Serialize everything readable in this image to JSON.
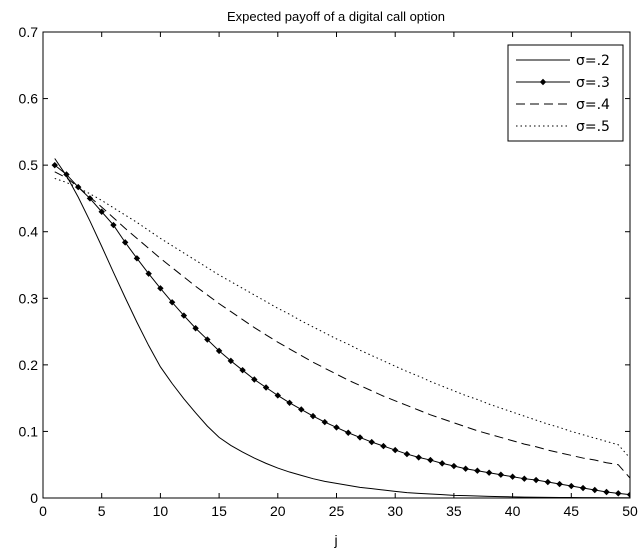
{
  "chart_data": {
    "type": "line",
    "title": "Expected payoff of a digital call option",
    "xlabel": "j",
    "ylabel": "",
    "xlim": [
      0,
      50
    ],
    "ylim": [
      0,
      0.7
    ],
    "xticks": [
      "0",
      "5",
      "10",
      "15",
      "20",
      "25",
      "30",
      "35",
      "40",
      "45",
      "50"
    ],
    "yticks": [
      "0",
      "0.1",
      "0.2",
      "0.3",
      "0.4",
      "0.5",
      "0.6",
      "0.7"
    ],
    "grid": false,
    "legend_position": "top-right",
    "x": [
      1,
      2,
      3,
      4,
      5,
      6,
      7,
      8,
      9,
      10,
      11,
      12,
      13,
      14,
      15,
      16,
      17,
      18,
      19,
      20,
      21,
      22,
      23,
      24,
      25,
      26,
      27,
      28,
      29,
      30,
      31,
      32,
      33,
      34,
      35,
      36,
      37,
      38,
      39,
      40,
      41,
      42,
      43,
      44,
      45,
      46,
      47,
      48,
      49,
      50
    ],
    "series": [
      {
        "name": "σ=.2",
        "style": "solid",
        "marker": "none",
        "values": [
          0.51,
          0.484,
          0.452,
          0.416,
          0.378,
          0.339,
          0.301,
          0.264,
          0.229,
          0.197,
          0.172,
          0.149,
          0.128,
          0.108,
          0.091,
          0.079,
          0.069,
          0.06,
          0.052,
          0.045,
          0.039,
          0.034,
          0.029,
          0.025,
          0.022,
          0.019,
          0.016,
          0.014,
          0.012,
          0.01,
          0.008,
          0.007,
          0.006,
          0.005,
          0.004,
          0.0035,
          0.003,
          0.0025,
          0.002,
          0.0017,
          0.0014,
          0.0012,
          0.001,
          0.0008,
          0.0007,
          0.0006,
          0.0005,
          0.0004,
          0.0003,
          0.0003
        ]
      },
      {
        "name": "σ=.3",
        "style": "solid",
        "marker": "diamond",
        "values": [
          0.5,
          0.486,
          0.467,
          0.45,
          0.43,
          0.41,
          0.384,
          0.36,
          0.337,
          0.315,
          0.294,
          0.274,
          0.255,
          0.238,
          0.221,
          0.206,
          0.192,
          0.178,
          0.166,
          0.154,
          0.143,
          0.133,
          0.123,
          0.114,
          0.106,
          0.098,
          0.091,
          0.084,
          0.078,
          0.072,
          0.066,
          0.061,
          0.057,
          0.052,
          0.048,
          0.044,
          0.041,
          0.038,
          0.035,
          0.032,
          0.029,
          0.027,
          0.024,
          0.021,
          0.018,
          0.015,
          0.012,
          0.009,
          0.007,
          0.005
        ]
      },
      {
        "name": "σ=.4",
        "style": "dashed",
        "marker": "none",
        "values": [
          0.49,
          0.481,
          0.467,
          0.452,
          0.437,
          0.421,
          0.405,
          0.39,
          0.375,
          0.36,
          0.346,
          0.332,
          0.318,
          0.305,
          0.292,
          0.28,
          0.268,
          0.256,
          0.245,
          0.234,
          0.224,
          0.214,
          0.204,
          0.195,
          0.186,
          0.177,
          0.169,
          0.161,
          0.153,
          0.146,
          0.139,
          0.132,
          0.125,
          0.119,
          0.113,
          0.107,
          0.101,
          0.096,
          0.091,
          0.086,
          0.081,
          0.077,
          0.072,
          0.068,
          0.064,
          0.06,
          0.057,
          0.053,
          0.05,
          0.03
        ]
      },
      {
        "name": "σ=.5",
        "style": "dotted",
        "marker": "none",
        "values": [
          0.48,
          0.474,
          0.466,
          0.457,
          0.447,
          0.436,
          0.425,
          0.414,
          0.402,
          0.39,
          0.379,
          0.368,
          0.357,
          0.346,
          0.335,
          0.325,
          0.315,
          0.305,
          0.295,
          0.285,
          0.276,
          0.266,
          0.257,
          0.248,
          0.239,
          0.231,
          0.222,
          0.214,
          0.206,
          0.198,
          0.19,
          0.183,
          0.175,
          0.168,
          0.161,
          0.154,
          0.148,
          0.141,
          0.135,
          0.129,
          0.123,
          0.117,
          0.111,
          0.106,
          0.1,
          0.095,
          0.09,
          0.085,
          0.08,
          0.06
        ]
      }
    ]
  }
}
